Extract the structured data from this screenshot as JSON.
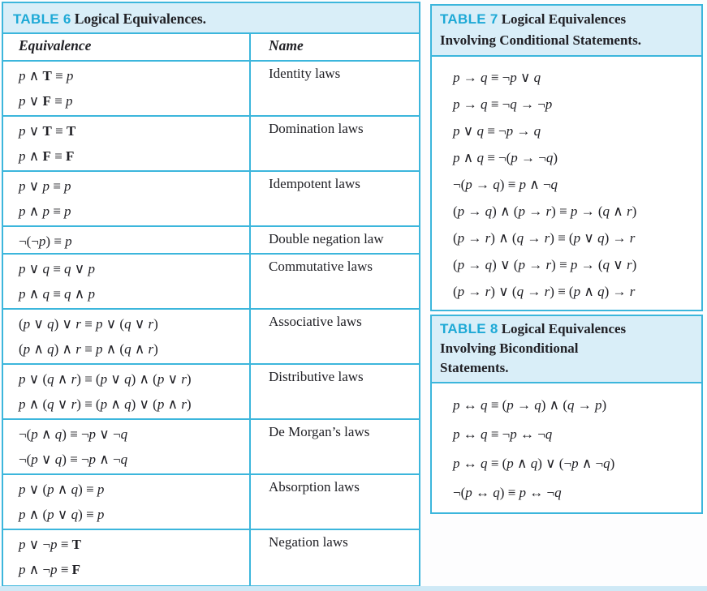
{
  "page": {
    "colors": {
      "border": "#3cb6dc",
      "header_bg": "#d9eef8",
      "table_label": "#1ea9d6",
      "text": "#212126",
      "background": "#fdfdfe",
      "bottom_strip": "#cfe9f6"
    }
  },
  "table6": {
    "label": "TABLE 6",
    "title": "Logical Equivalences.",
    "columns": [
      "Equivalence",
      "Name"
    ],
    "rows": [
      {
        "equations": [
          "p ∧ T ≡ p",
          "p ∨ F ≡ p"
        ],
        "name": "Identity laws"
      },
      {
        "equations": [
          "p ∨ T ≡ T",
          "p ∧ F ≡ F"
        ],
        "name": "Domination laws"
      },
      {
        "equations": [
          "p ∨ p ≡ p",
          "p ∧ p ≡ p"
        ],
        "name": "Idempotent laws"
      },
      {
        "equations": [
          "¬(¬p) ≡ p"
        ],
        "name": "Double negation law"
      },
      {
        "equations": [
          "p ∨ q ≡ q ∨ p",
          "p ∧ q ≡ q ∧ p"
        ],
        "name": "Commutative laws"
      },
      {
        "equations": [
          "(p ∨ q) ∨ r ≡ p ∨ (q ∨ r)",
          "(p ∧ q) ∧ r ≡ p ∧ (q ∧ r)"
        ],
        "name": "Associative laws"
      },
      {
        "equations": [
          "p ∨ (q ∧ r) ≡ (p ∨ q) ∧ (p ∨ r)",
          "p ∧ (q ∨ r) ≡ (p ∧ q) ∨ (p ∧ r)"
        ],
        "name": "Distributive laws"
      },
      {
        "equations": [
          "¬(p ∧ q) ≡ ¬p ∨ ¬q",
          "¬(p ∨ q) ≡ ¬p ∧ ¬q"
        ],
        "name": "De Morgan’s laws"
      },
      {
        "equations": [
          "p ∨ (p ∧ q) ≡ p",
          "p ∧ (p ∨ q) ≡ p"
        ],
        "name": "Absorption laws"
      },
      {
        "equations": [
          "p ∨ ¬p ≡ T",
          "p ∧ ¬p ≡ F"
        ],
        "name": "Negation laws"
      }
    ]
  },
  "table7": {
    "label": "TABLE 7",
    "title": "Logical Equivalences Involving Conditional Statements.",
    "equations": [
      "p → q ≡ ¬p ∨ q",
      "p → q ≡ ¬q → ¬p",
      "p ∨ q ≡ ¬p → q",
      "p ∧ q ≡ ¬(p → ¬q)",
      "¬(p → q) ≡ p ∧ ¬q",
      "(p → q) ∧ (p → r) ≡ p → (q ∧ r)",
      "(p → r) ∧ (q → r) ≡ (p ∨ q) → r",
      "(p → q) ∨ (p → r) ≡ p → (q ∨ r)",
      "(p → r) ∨ (q → r) ≡ (p ∧ q) → r"
    ]
  },
  "table8": {
    "label": "TABLE 8",
    "title": "Logical Equivalences Involving Biconditional Statements.",
    "equations": [
      "p ↔ q ≡ (p → q) ∧ (q → p)",
      "p ↔ q ≡ ¬p ↔ ¬q",
      "p ↔ q ≡ (p ∧ q) ∨ (¬p ∧ ¬q)",
      "¬(p ↔ q) ≡ p ↔ ¬q"
    ]
  }
}
